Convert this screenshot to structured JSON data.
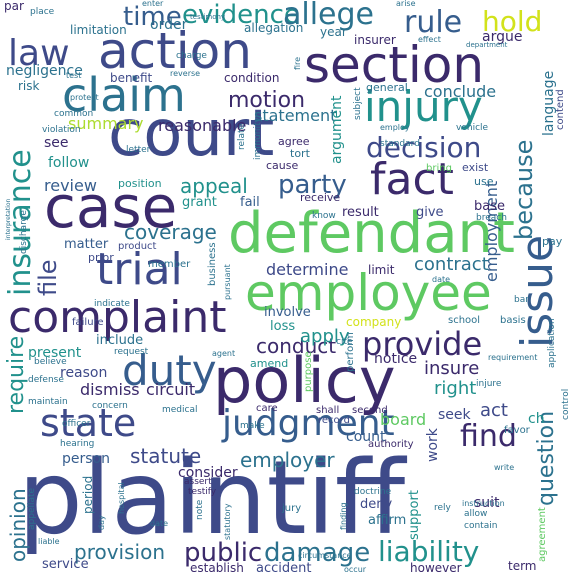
{
  "words": [
    {
      "text": "plaintiff",
      "color": "indigo"
    },
    {
      "text": "court",
      "color": "indigo"
    },
    {
      "text": "defendant",
      "color": "green"
    },
    {
      "text": "policy",
      "color": "navy"
    },
    {
      "text": "case",
      "color": "navy"
    },
    {
      "text": "employee",
      "color": "green"
    },
    {
      "text": "action",
      "color": "indigo"
    },
    {
      "text": "section",
      "color": "navy"
    },
    {
      "text": "trial",
      "color": "indigo"
    },
    {
      "text": "complaint",
      "color": "navy"
    },
    {
      "text": "issue",
      "color": "blue"
    },
    {
      "text": "claim",
      "color": "steel"
    },
    {
      "text": "injury",
      "color": "teal"
    },
    {
      "text": "fact",
      "color": "navy"
    },
    {
      "text": "duty",
      "color": "blue"
    },
    {
      "text": "state",
      "color": "indigo"
    },
    {
      "text": "judgment",
      "color": "blue"
    },
    {
      "text": "law",
      "color": "indigo"
    },
    {
      "text": "insurance",
      "color": "teal"
    },
    {
      "text": "evidence",
      "color": "teal"
    },
    {
      "text": "allege",
      "color": "steel"
    },
    {
      "text": "hold",
      "color": "yellow"
    },
    {
      "text": "rule",
      "color": "blue"
    },
    {
      "text": "time",
      "color": "blue"
    },
    {
      "text": "decision",
      "color": "indigo"
    },
    {
      "text": "motion",
      "color": "navy"
    },
    {
      "text": "party",
      "color": "blue"
    },
    {
      "text": "because",
      "color": "steel"
    },
    {
      "text": "provide",
      "color": "navy"
    },
    {
      "text": "liability",
      "color": "teal"
    },
    {
      "text": "damage",
      "color": "steel"
    },
    {
      "text": "public",
      "color": "navy"
    },
    {
      "text": "find",
      "color": "navy"
    },
    {
      "text": "require",
      "color": "teal"
    },
    {
      "text": "file",
      "color": "indigo"
    },
    {
      "text": "coverage",
      "color": "steel"
    },
    {
      "text": "employment",
      "color": "blue"
    },
    {
      "text": "question",
      "color": "steel"
    },
    {
      "text": "conduct",
      "color": "navy"
    },
    {
      "text": "employer",
      "color": "steel"
    },
    {
      "text": "statute",
      "color": "indigo"
    },
    {
      "text": "provision",
      "color": "steel"
    },
    {
      "text": "opinion",
      "color": "steel"
    },
    {
      "text": "determine",
      "color": "indigo"
    },
    {
      "text": "contract",
      "color": "steel"
    },
    {
      "text": "appeal",
      "color": "teal"
    },
    {
      "text": "review",
      "color": "blue"
    },
    {
      "text": "summary",
      "color": "lime"
    },
    {
      "text": "reasonable",
      "color": "navy"
    },
    {
      "text": "statement",
      "color": "steel"
    },
    {
      "text": "argument",
      "color": "teal"
    },
    {
      "text": "conclude",
      "color": "steel"
    },
    {
      "text": "language",
      "color": "steel"
    },
    {
      "text": "order",
      "color": "steel"
    },
    {
      "text": "negligence",
      "color": "steel"
    },
    {
      "text": "apply",
      "color": "teal"
    },
    {
      "text": "insure",
      "color": "navy"
    },
    {
      "text": "right",
      "color": "teal"
    },
    {
      "text": "act",
      "color": "indigo"
    },
    {
      "text": "circuit",
      "color": "navy"
    },
    {
      "text": "dismiss",
      "color": "navy"
    },
    {
      "text": "reason",
      "color": "indigo"
    },
    {
      "text": "present",
      "color": "teal"
    },
    {
      "text": "notice",
      "color": "navy"
    },
    {
      "text": "seek",
      "color": "indigo"
    },
    {
      "text": "count",
      "color": "blue"
    },
    {
      "text": "board",
      "color": "green"
    },
    {
      "text": "work",
      "color": "indigo"
    },
    {
      "text": "consider",
      "color": "navy"
    },
    {
      "text": "person",
      "color": "blue"
    },
    {
      "text": "suit",
      "color": "navy"
    },
    {
      "text": "deny",
      "color": "indigo"
    },
    {
      "text": "affirm",
      "color": "steel"
    },
    {
      "text": "support",
      "color": "teal"
    },
    {
      "text": "accident",
      "color": "indigo"
    },
    {
      "text": "service",
      "color": "indigo"
    },
    {
      "text": "establish",
      "color": "navy"
    },
    {
      "text": "however",
      "color": "navy"
    },
    {
      "text": "term",
      "color": "navy"
    },
    {
      "text": "see",
      "color": "navy"
    },
    {
      "text": "follow",
      "color": "teal"
    },
    {
      "text": "grant",
      "color": "teal"
    },
    {
      "text": "fail",
      "color": "blue"
    },
    {
      "text": "result",
      "color": "navy"
    },
    {
      "text": "give",
      "color": "indigo"
    },
    {
      "text": "base",
      "color": "navy"
    },
    {
      "text": "loss",
      "color": "teal"
    },
    {
      "text": "company",
      "color": "yellow"
    },
    {
      "text": "include",
      "color": "steel"
    },
    {
      "text": "matter",
      "color": "blue"
    },
    {
      "text": "involve",
      "color": "blue"
    },
    {
      "text": "limit",
      "color": "navy"
    },
    {
      "text": "benefit",
      "color": "indigo"
    },
    {
      "text": "condition",
      "color": "navy"
    },
    {
      "text": "allegation",
      "color": "steel"
    },
    {
      "text": "limitation",
      "color": "steel"
    },
    {
      "text": "risk",
      "color": "steel"
    },
    {
      "text": "insurer",
      "color": "navy"
    },
    {
      "text": "year",
      "color": "steel"
    },
    {
      "text": "argue",
      "color": "navy"
    },
    {
      "text": "general",
      "color": "steel"
    },
    {
      "text": "position",
      "color": "teal"
    },
    {
      "text": "agree",
      "color": "navy"
    },
    {
      "text": "tort",
      "color": "steel"
    },
    {
      "text": "cause",
      "color": "navy"
    },
    {
      "text": "receive",
      "color": "navy"
    },
    {
      "text": "exist",
      "color": "indigo"
    },
    {
      "text": "use",
      "color": "steel"
    },
    {
      "text": "pay",
      "color": "steel"
    },
    {
      "text": "prior",
      "color": "indigo"
    },
    {
      "text": "product",
      "color": "indigo"
    },
    {
      "text": "member",
      "color": "steel"
    },
    {
      "text": "business",
      "color": "steel"
    },
    {
      "text": "failure",
      "color": "indigo"
    },
    {
      "text": "school",
      "color": "steel"
    },
    {
      "text": "basis",
      "color": "steel"
    },
    {
      "text": "indicate",
      "color": "steel"
    },
    {
      "text": "amend",
      "color": "teal"
    },
    {
      "text": "purpose",
      "color": "green"
    },
    {
      "text": "perform",
      "color": "steel"
    },
    {
      "text": "care",
      "color": "navy"
    },
    {
      "text": "shall",
      "color": "navy"
    },
    {
      "text": "second",
      "color": "navy"
    },
    {
      "text": "record",
      "color": "indigo"
    },
    {
      "text": "authority",
      "color": "navy"
    },
    {
      "text": "favor",
      "color": "steel"
    },
    {
      "text": "agreement",
      "color": "green"
    },
    {
      "text": "application",
      "color": "steel"
    },
    {
      "text": "contend",
      "color": "indigo"
    },
    {
      "text": "place",
      "color": "steel"
    },
    {
      "text": "par",
      "color": "navy"
    },
    {
      "text": "testify",
      "color": "navy"
    },
    {
      "text": "assert",
      "color": "navy"
    },
    {
      "text": "jury",
      "color": "steel"
    },
    {
      "text": "doctrine",
      "color": "steel"
    },
    {
      "text": "rely",
      "color": "steel"
    },
    {
      "text": "allow",
      "color": "steel"
    },
    {
      "text": "contain",
      "color": "steel"
    },
    {
      "text": "appellate",
      "color": "steel"
    },
    {
      "text": "hearing",
      "color": "steel"
    },
    {
      "text": "officer",
      "color": "steel"
    },
    {
      "text": "defense",
      "color": "steel"
    },
    {
      "text": "maintain",
      "color": "steel"
    },
    {
      "text": "believe",
      "color": "steel"
    },
    {
      "text": "request",
      "color": "steel"
    },
    {
      "text": "concern",
      "color": "steel"
    },
    {
      "text": "medical",
      "color": "steel"
    },
    {
      "text": "standard",
      "color": "steel"
    },
    {
      "text": "subject",
      "color": "steel"
    },
    {
      "text": "employ",
      "color": "steel"
    },
    {
      "text": "vehicle",
      "color": "steel"
    },
    {
      "text": "violation",
      "color": "steel"
    },
    {
      "text": "common",
      "color": "steel"
    },
    {
      "text": "letter",
      "color": "steel"
    },
    {
      "text": "charge",
      "color": "steel"
    },
    {
      "text": "relate",
      "color": "steel"
    },
    {
      "text": "immunity",
      "color": "steel"
    },
    {
      "text": "bring",
      "color": "green"
    },
    {
      "text": "breach",
      "color": "steel"
    },
    {
      "text": "know",
      "color": "steel"
    },
    {
      "text": "injure",
      "color": "steel"
    },
    {
      "text": "requirement",
      "color": "steel"
    },
    {
      "text": "control",
      "color": "steel"
    },
    {
      "text": "ch",
      "color": "teal"
    },
    {
      "text": "period",
      "color": "steel"
    },
    {
      "text": "note",
      "color": "steel"
    },
    {
      "text": "make",
      "color": "steel"
    },
    {
      "text": "date",
      "color": "steel"
    },
    {
      "text": "bar",
      "color": "steel"
    },
    {
      "text": "cite",
      "color": "steel"
    },
    {
      "text": "agent",
      "color": "steel"
    },
    {
      "text": "pursuant",
      "color": "steel"
    },
    {
      "text": "instruction",
      "color": "steel"
    },
    {
      "text": "occur",
      "color": "steel"
    },
    {
      "text": "circumstance",
      "color": "steel"
    },
    {
      "text": "liable",
      "color": "steel"
    },
    {
      "text": "date",
      "color": "steel"
    },
    {
      "text": "day",
      "color": "steel"
    },
    {
      "text": "hospital",
      "color": "steel"
    },
    {
      "text": "finding",
      "color": "steel"
    },
    {
      "text": "write",
      "color": "steel"
    },
    {
      "text": "department",
      "color": "steel"
    },
    {
      "text": "arise",
      "color": "steel"
    },
    {
      "text": "enter",
      "color": "steel"
    },
    {
      "text": "testimony",
      "color": "steel"
    },
    {
      "text": "effect",
      "color": "steel"
    },
    {
      "text": "test",
      "color": "steel"
    },
    {
      "text": "protect",
      "color": "steel"
    },
    {
      "text": "reverse",
      "color": "steel"
    },
    {
      "text": "fire",
      "color": "steel"
    },
    {
      "text": "interpretation",
      "color": "steel"
    },
    {
      "text": "discharge",
      "color": "steel"
    },
    {
      "text": "statutory",
      "color": "steel"
    }
  ]
}
